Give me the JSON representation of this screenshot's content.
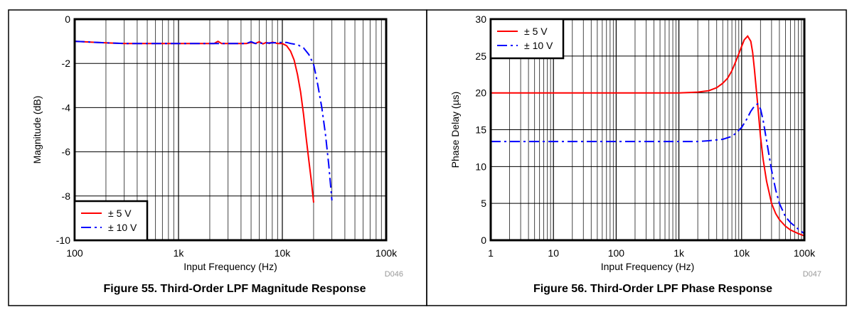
{
  "chart_data": [
    {
      "type": "line",
      "caption": "Figure 55. Third-Order LPF Magnitude Response",
      "code": "D046",
      "xlabel": "Input Frequency (Hz)",
      "ylabel": "Magnitude (dB)",
      "xscale": "log",
      "xlim": [
        100,
        100000
      ],
      "ylim": [
        -10,
        0
      ],
      "xticks": [
        {
          "v": 100,
          "label": "100"
        },
        {
          "v": 1000,
          "label": "1k"
        },
        {
          "v": 10000,
          "label": "10k"
        },
        {
          "v": 100000,
          "label": "100k"
        }
      ],
      "yticks": [
        {
          "v": 0,
          "label": "0"
        },
        {
          "v": -2,
          "label": "-2"
        },
        {
          "v": -4,
          "label": "-4"
        },
        {
          "v": -6,
          "label": "-6"
        },
        {
          "v": -8,
          "label": "-8"
        },
        {
          "v": -10,
          "label": "-10"
        }
      ],
      "grid": true,
      "legend": "bottom-left",
      "series": [
        {
          "name": "± 5 V",
          "color": "#ff0000",
          "style": "solid",
          "x": [
            100,
            200,
            300,
            1000,
            2200,
            2400,
            2600,
            4500,
            5000,
            5500,
            6000,
            6500,
            7000,
            7500,
            8000,
            9000,
            10000,
            11000,
            12000,
            13000,
            14000,
            15000,
            16000,
            17000,
            18000,
            19000,
            20000
          ],
          "y": [
            -1.0,
            -1.07,
            -1.1,
            -1.1,
            -1.1,
            -1.0,
            -1.1,
            -1.1,
            -1.05,
            -1.1,
            -1.02,
            -1.12,
            -1.05,
            -1.1,
            -1.04,
            -1.1,
            -1.1,
            -1.2,
            -1.45,
            -1.85,
            -2.5,
            -3.3,
            -4.3,
            -5.4,
            -6.4,
            -7.3,
            -8.3
          ]
        },
        {
          "name": "± 10 V",
          "color": "#0000ff",
          "style": "dash-dot",
          "x": [
            100,
            200,
            300,
            1000,
            4500,
            5000,
            5500,
            10000,
            11000,
            12000,
            14000,
            16000,
            18000,
            20000,
            21000,
            22000,
            24000,
            26000,
            28000,
            30000
          ],
          "y": [
            -1.0,
            -1.07,
            -1.1,
            -1.1,
            -1.1,
            -1.02,
            -1.1,
            -1.05,
            -1.05,
            -1.1,
            -1.15,
            -1.3,
            -1.6,
            -2.05,
            -2.5,
            -3.0,
            -4.0,
            -5.2,
            -6.6,
            -8.2
          ]
        }
      ]
    },
    {
      "type": "line",
      "caption": "Figure 56. Third-Order LPF Phase Response",
      "code": "D047",
      "xlabel": "Input Frequency (Hz)",
      "ylabel": "Phase Delay (µs)",
      "xscale": "log",
      "xlim": [
        1,
        100000
      ],
      "ylim": [
        0,
        30
      ],
      "xticks": [
        {
          "v": 1,
          "label": "1"
        },
        {
          "v": 10,
          "label": "10"
        },
        {
          "v": 100,
          "label": "100"
        },
        {
          "v": 1000,
          "label": "1k"
        },
        {
          "v": 10000,
          "label": "10k"
        },
        {
          "v": 100000,
          "label": "100k"
        }
      ],
      "yticks": [
        {
          "v": 0,
          "label": "0"
        },
        {
          "v": 5,
          "label": "5"
        },
        {
          "v": 10,
          "label": "10"
        },
        {
          "v": 15,
          "label": "15"
        },
        {
          "v": 20,
          "label": "20"
        },
        {
          "v": 25,
          "label": "25"
        },
        {
          "v": 30,
          "label": "30"
        }
      ],
      "grid": true,
      "legend": "top-left",
      "series": [
        {
          "name": "± 5 V",
          "color": "#ff0000",
          "style": "solid",
          "x": [
            1,
            1000,
            2000,
            3000,
            4000,
            5000,
            6000,
            7000,
            8000,
            9000,
            10000,
            11000,
            12500,
            14000,
            15000,
            16000,
            18000,
            20000,
            22000,
            25000,
            30000,
            35000,
            40000,
            50000,
            60000,
            80000,
            100000
          ],
          "y": [
            20,
            20,
            20.1,
            20.3,
            20.7,
            21.3,
            22.0,
            23.0,
            24.2,
            25.3,
            26.3,
            27.2,
            27.7,
            27.0,
            25.5,
            23.2,
            18.5,
            14.0,
            11.0,
            8.0,
            5.0,
            3.6,
            2.8,
            1.9,
            1.4,
            0.9,
            0.6
          ]
        },
        {
          "name": "± 10 V",
          "color": "#0000ff",
          "style": "dash-dot",
          "x": [
            1,
            2000,
            3000,
            5000,
            7000,
            8000,
            10000,
            12000,
            14000,
            16000,
            18000,
            20000,
            22000,
            25000,
            30000,
            35000,
            40000,
            50000,
            60000,
            80000,
            100000
          ],
          "y": [
            13.4,
            13.4,
            13.5,
            13.7,
            14.1,
            14.5,
            15.3,
            16.4,
            17.5,
            18.2,
            18.5,
            17.8,
            16.3,
            13.5,
            9.5,
            6.8,
            5.0,
            3.2,
            2.4,
            1.5,
            0.9
          ]
        }
      ]
    }
  ]
}
